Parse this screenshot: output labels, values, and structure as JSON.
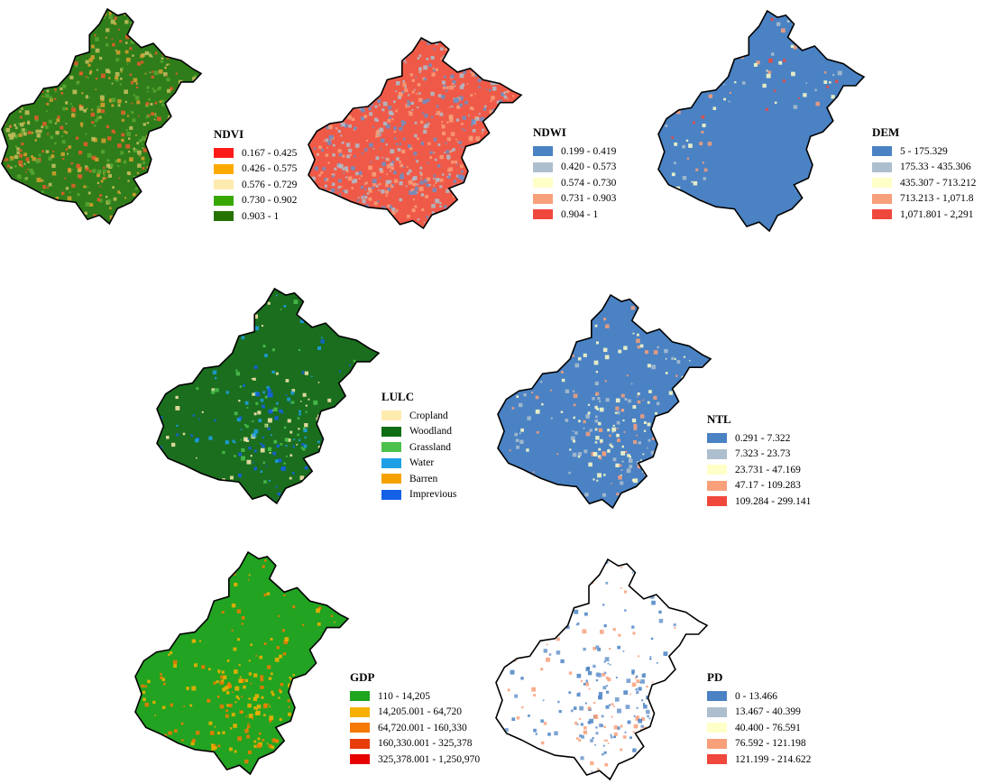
{
  "panels": [
    {
      "id": "ndvi",
      "title": "NDVI",
      "classes": [
        {
          "label": "0.167 - 0.425",
          "color": "#ff1a1a"
        },
        {
          "label": "0.426 - 0.575",
          "color": "#ffaa00"
        },
        {
          "label": "0.576 - 0.729",
          "color": "#ffebaf"
        },
        {
          "label": "0.730 - 0.902",
          "color": "#38a800"
        },
        {
          "label": "0.903 - 1",
          "color": "#267300"
        }
      ],
      "map": {
        "base": "#2e7d1a",
        "speckle": [
          "#d9a030",
          "#e85a2a",
          "#5aa632",
          "#c8c060"
        ],
        "outline": "#000000"
      }
    },
    {
      "id": "ndwi",
      "title": "NDWI",
      "classes": [
        {
          "label": "0.199 - 0.419",
          "color": "#4a82c4"
        },
        {
          "label": "0.420 - 0.573",
          "color": "#adbfce"
        },
        {
          "label": "0.574 - 0.730",
          "color": "#ffffc8"
        },
        {
          "label": "0.731 - 0.903",
          "color": "#f7a07a"
        },
        {
          "label": "0.904 - 1",
          "color": "#f0483c"
        }
      ],
      "map": {
        "base": "#ef5a48",
        "speckle": [
          "#adbfce",
          "#f7a07a",
          "#6a90c8"
        ],
        "outline": "#000000"
      }
    },
    {
      "id": "dem",
      "title": "DEM",
      "classes": [
        {
          "label": "5 - 175.329",
          "color": "#4a82c4"
        },
        {
          "label": "175.33 - 435.306",
          "color": "#adbfce"
        },
        {
          "label": "435.307 - 713.212",
          "color": "#ffffc8"
        },
        {
          "label": "713.213 - 1,071.8",
          "color": "#f7a07a"
        },
        {
          "label": "1,071.801 - 2,291",
          "color": "#f0483c"
        }
      ],
      "map": {
        "base": "#4a82c4",
        "speckle": [
          "#adbfce",
          "#ffffc8",
          "#f7a07a",
          "#f0483c"
        ],
        "outline": "#000000"
      }
    },
    {
      "id": "lulc",
      "title": "LULC",
      "classes": [
        {
          "label": "Cropland",
          "color": "#ffebaf"
        },
        {
          "label": "Woodland",
          "color": "#0f6e14"
        },
        {
          "label": "Grassland",
          "color": "#4cc24c"
        },
        {
          "label": "Water",
          "color": "#1ea0e6"
        },
        {
          "label": "Barren",
          "color": "#f5a200"
        },
        {
          "label": "Imprevious",
          "color": "#1460e6"
        }
      ],
      "map": {
        "base": "#1a6e1e",
        "speckle": [
          "#ffebaf",
          "#1460e6",
          "#1ea0e6",
          "#4cc24c"
        ],
        "outline": "#000000"
      }
    },
    {
      "id": "ntl",
      "title": "NTL",
      "classes": [
        {
          "label": "0.291 - 7.322",
          "color": "#4a82c4"
        },
        {
          "label": "7.323 - 23.73",
          "color": "#adbfce"
        },
        {
          "label": "23.731 - 47.169",
          "color": "#ffffc8"
        },
        {
          "label": "47.17 - 109.283",
          "color": "#f7a07a"
        },
        {
          "label": "109.284 - 299.141",
          "color": "#f0483c"
        }
      ],
      "map": {
        "base": "#4a82c4",
        "speckle": [
          "#ffffc8",
          "#adbfce",
          "#f7a07a"
        ],
        "outline": "#000000"
      }
    },
    {
      "id": "gdp",
      "title": "GDP",
      "classes": [
        {
          "label": "110 - 14,205",
          "color": "#1fa51f"
        },
        {
          "label": "14,205.001 - 64,720",
          "color": "#f5b000"
        },
        {
          "label": "64,720.001 - 160,330",
          "color": "#f57800"
        },
        {
          "label": "160,330.001 - 325,378",
          "color": "#e83c0a"
        },
        {
          "label": "325,378.001 - 1,250,970",
          "color": "#e60000"
        }
      ],
      "map": {
        "base": "#22a322",
        "speckle": [
          "#f5b000",
          "#f57800"
        ],
        "outline": "#000000"
      }
    },
    {
      "id": "pd",
      "title": "PD",
      "classes": [
        {
          "label": "0 - 13.466",
          "color": "#4a82c4"
        },
        {
          "label": "13.467 - 40.399",
          "color": "#adbfce"
        },
        {
          "label": "40.400 - 76.591",
          "color": "#ffffc8"
        },
        {
          "label": "76.592 - 121.198",
          "color": "#f7a07a"
        },
        {
          "label": "121.199 - 214.622",
          "color": "#f0483c"
        }
      ],
      "map": {
        "base": "#ffffff",
        "speckle": [
          "#4a82c4",
          "#6a96cc",
          "#f7a07a"
        ],
        "outline": "#000000"
      }
    }
  ]
}
